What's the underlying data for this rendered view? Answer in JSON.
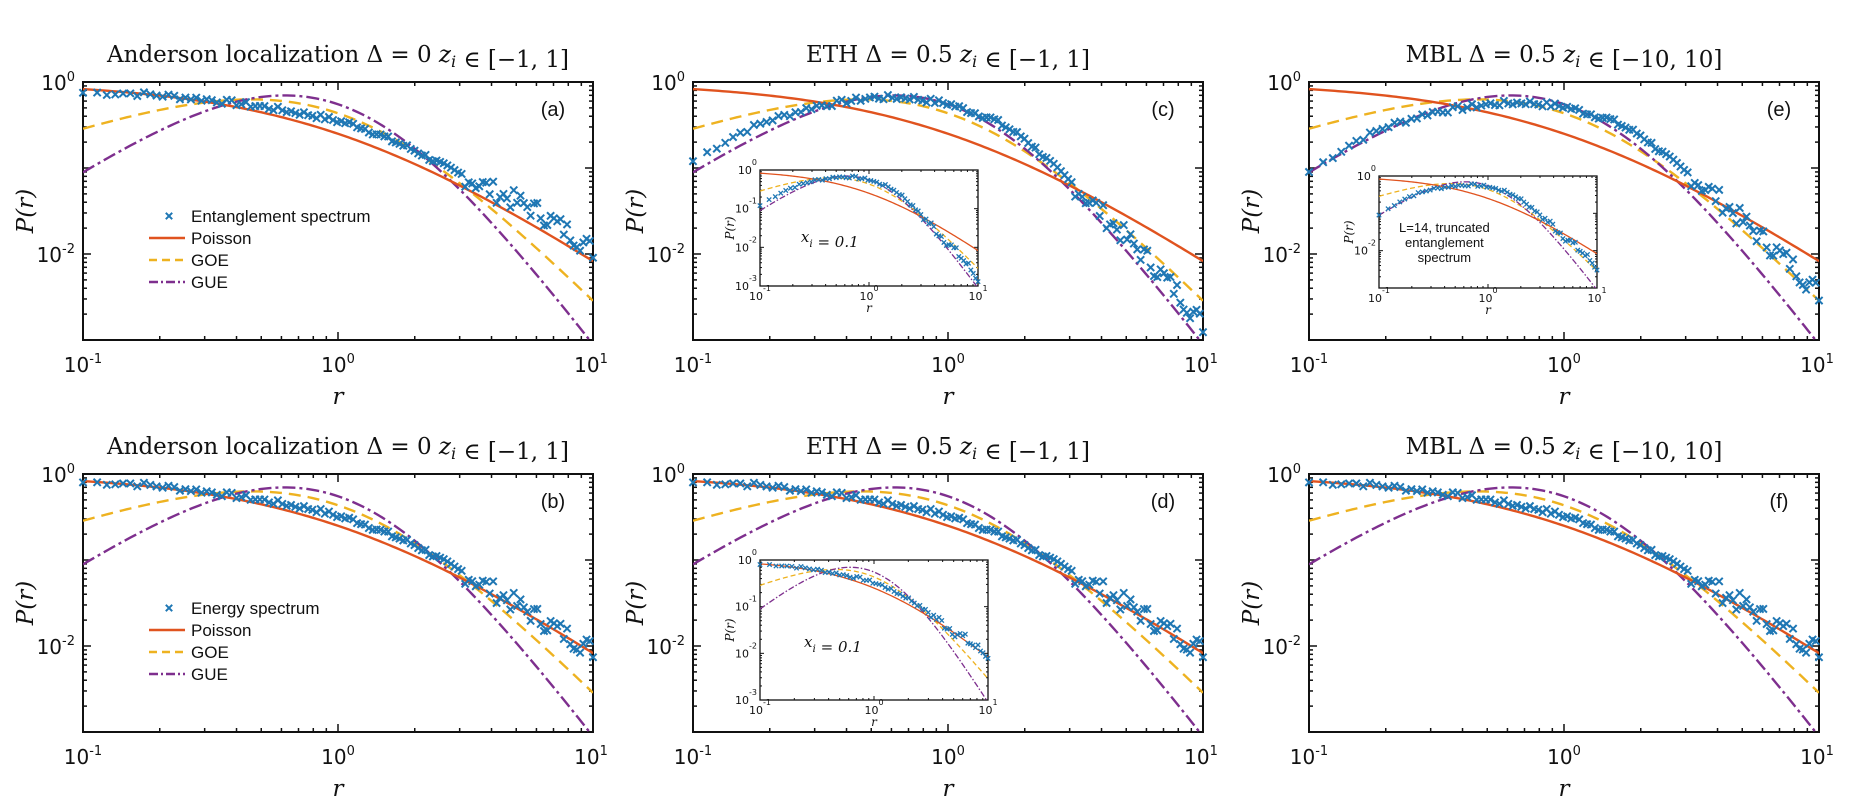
{
  "colors": {
    "data": "#1f77b4",
    "poisson": "#e0531f",
    "goe": "#eeb220",
    "gue": "#7e2f8e",
    "axis": "#111111"
  },
  "chart_data": [
    {
      "id": "a",
      "type": "line",
      "title": "Anderson localization Δ = 0 z_i ∈ [−1, 1]",
      "panel_label": "(a)",
      "xlabel": "r",
      "ylabel": "P(r)",
      "xscale": "log",
      "yscale": "log",
      "xlim": [
        0.1,
        10
      ],
      "ylim": [
        0.001,
        1
      ],
      "xticks": [
        "10-1",
        "100",
        "101"
      ],
      "yticks": [
        "10-2",
        "100"
      ],
      "legend": [
        "Entanglement spectrum",
        "Poisson",
        "GOE",
        "GUE"
      ],
      "legend_position": "left",
      "series": [
        {
          "name": "Entanglement spectrum",
          "kind": "scatter",
          "x": [
            0.1,
            0.15,
            0.2,
            0.3,
            0.5,
            0.8,
            1.2,
            2,
            3,
            4,
            6,
            8,
            10
          ],
          "y": [
            0.75,
            0.74,
            0.7,
            0.63,
            0.52,
            0.41,
            0.31,
            0.16,
            0.085,
            0.055,
            0.032,
            0.018,
            0.011
          ]
        },
        {
          "name": "Poisson",
          "kind": "line",
          "x": [
            0.1,
            10
          ],
          "formula": "poisson"
        },
        {
          "name": "GOE",
          "kind": "line",
          "x": [
            0.1,
            10
          ],
          "formula": "goe"
        },
        {
          "name": "GUE",
          "kind": "line",
          "x": [
            0.1,
            10
          ],
          "formula": "gue"
        }
      ]
    },
    {
      "id": "c",
      "type": "line",
      "title": "ETH Δ = 0.5 z_i ∈ [−1, 1]",
      "panel_label": "(c)",
      "xlabel": "r",
      "ylabel": "P(r)",
      "xscale": "log",
      "yscale": "log",
      "xlim": [
        0.1,
        10
      ],
      "ylim": [
        0.001,
        1
      ],
      "xticks": [
        "10-1",
        "100",
        "101"
      ],
      "yticks": [
        "10-2",
        "100"
      ],
      "series": [
        {
          "name": "Entanglement spectrum",
          "kind": "scatter",
          "x": [
            0.1,
            0.15,
            0.2,
            0.3,
            0.5,
            0.7,
            1,
            1.5,
            2,
            3,
            4,
            6,
            8,
            10
          ],
          "y": [
            0.12,
            0.25,
            0.36,
            0.52,
            0.66,
            0.66,
            0.56,
            0.37,
            0.22,
            0.07,
            0.03,
            0.009,
            0.0035,
            0.0015
          ]
        },
        {
          "name": "Poisson",
          "kind": "line",
          "x": [
            0.1,
            10
          ],
          "formula": "poisson"
        },
        {
          "name": "GOE",
          "kind": "line",
          "x": [
            0.1,
            10
          ],
          "formula": "goe"
        },
        {
          "name": "GUE",
          "kind": "line",
          "x": [
            0.1,
            10
          ],
          "formula": "gue"
        }
      ],
      "inset": {
        "note": "x_i = 0.1",
        "xticks": [
          "10-1",
          "100",
          "101"
        ],
        "yticks": [
          "10-3",
          "10-2",
          "10-1",
          "100"
        ],
        "xlabel": "r",
        "ylabel": "P(r)"
      }
    },
    {
      "id": "e",
      "type": "line",
      "title": "MBL Δ = 0.5 z_i ∈ [−10, 10]",
      "panel_label": "(e)",
      "xlabel": "r",
      "ylabel": "P(r)",
      "xscale": "log",
      "yscale": "log",
      "xlim": [
        0.1,
        10
      ],
      "ylim": [
        0.001,
        1
      ],
      "xticks": [
        "10-1",
        "100",
        "101"
      ],
      "yticks": [
        "10-2",
        "100"
      ],
      "series": [
        {
          "name": "Entanglement spectrum",
          "kind": "scatter",
          "x": [
            0.1,
            0.15,
            0.2,
            0.3,
            0.5,
            0.7,
            1,
            1.5,
            2,
            3,
            4,
            6,
            8,
            10
          ],
          "y": [
            0.09,
            0.2,
            0.3,
            0.44,
            0.55,
            0.58,
            0.52,
            0.37,
            0.24,
            0.09,
            0.045,
            0.015,
            0.007,
            0.0035
          ]
        },
        {
          "name": "Poisson",
          "kind": "line",
          "x": [
            0.1,
            10
          ],
          "formula": "poisson"
        },
        {
          "name": "GOE",
          "kind": "line",
          "x": [
            0.1,
            10
          ],
          "formula": "goe"
        },
        {
          "name": "GUE",
          "kind": "line",
          "x": [
            0.1,
            10
          ],
          "formula": "gue"
        }
      ],
      "inset": {
        "note_lines": [
          "L=14, truncated",
          "entanglement",
          "spectrum"
        ],
        "xticks": [
          "10-1",
          "100",
          "101"
        ],
        "yticks": [
          "10-2",
          "100"
        ],
        "xlabel": "r",
        "ylabel": "P(r)"
      }
    },
    {
      "id": "b",
      "type": "line",
      "title": "Anderson localization Δ = 0 z_i ∈ [−1, 1]",
      "panel_label": "(b)",
      "xlabel": "r",
      "ylabel": "P(r)",
      "xscale": "log",
      "yscale": "log",
      "xlim": [
        0.1,
        10
      ],
      "ylim": [
        0.001,
        1
      ],
      "xticks": [
        "10-1",
        "100",
        "101"
      ],
      "yticks": [
        "10-2",
        "100"
      ],
      "legend": [
        "Energy spectrum",
        "Poisson",
        "GOE",
        "GUE"
      ],
      "legend_position": "left",
      "series": [
        {
          "name": "Energy spectrum",
          "kind": "scatter",
          "x": [
            0.1,
            0.15,
            0.2,
            0.3,
            0.5,
            0.8,
            1.2,
            2,
            3,
            4,
            6,
            8,
            10
          ],
          "y": [
            0.8,
            0.78,
            0.72,
            0.63,
            0.5,
            0.39,
            0.28,
            0.15,
            0.075,
            0.045,
            0.022,
            0.013,
            0.009
          ]
        },
        {
          "name": "Poisson",
          "kind": "line",
          "x": [
            0.1,
            10
          ],
          "formula": "poisson"
        },
        {
          "name": "GOE",
          "kind": "line",
          "x": [
            0.1,
            10
          ],
          "formula": "goe"
        },
        {
          "name": "GUE",
          "kind": "line",
          "x": [
            0.1,
            10
          ],
          "formula": "gue"
        }
      ]
    },
    {
      "id": "d",
      "type": "line",
      "title": "ETH Δ = 0.5 z_i ∈ [−1, 1]",
      "panel_label": "(d)",
      "xlabel": "r",
      "ylabel": "P(r)",
      "xscale": "log",
      "yscale": "log",
      "xlim": [
        0.1,
        10
      ],
      "ylim": [
        0.001,
        1
      ],
      "xticks": [
        "10-1",
        "100",
        "101"
      ],
      "yticks": [
        "10-2",
        "100"
      ],
      "series": [
        {
          "name": "Energy spectrum",
          "kind": "scatter",
          "x": [
            0.1,
            0.15,
            0.2,
            0.3,
            0.5,
            0.8,
            1.2,
            2,
            3,
            4,
            6,
            8,
            10
          ],
          "y": [
            0.8,
            0.78,
            0.72,
            0.63,
            0.5,
            0.39,
            0.28,
            0.15,
            0.075,
            0.045,
            0.022,
            0.013,
            0.009
          ]
        },
        {
          "name": "Poisson",
          "kind": "line",
          "x": [
            0.1,
            10
          ],
          "formula": "poisson"
        },
        {
          "name": "GOE",
          "kind": "line",
          "x": [
            0.1,
            10
          ],
          "formula": "goe"
        },
        {
          "name": "GUE",
          "kind": "line",
          "x": [
            0.1,
            10
          ],
          "formula": "gue"
        }
      ],
      "inset": {
        "note": "x_i = 0.1",
        "xticks": [
          "10-1",
          "100",
          "101"
        ],
        "yticks": [
          "10-3",
          "10-2",
          "10-1",
          "100"
        ],
        "xlabel": "r",
        "ylabel": "P(r)"
      }
    },
    {
      "id": "f",
      "type": "line",
      "title": "MBL Δ = 0.5 z_i ∈ [−10, 10]",
      "panel_label": "(f)",
      "xlabel": "r",
      "ylabel": "P(r)",
      "xscale": "log",
      "yscale": "log",
      "xlim": [
        0.1,
        10
      ],
      "ylim": [
        0.001,
        1
      ],
      "xticks": [
        "10-1",
        "100",
        "101"
      ],
      "yticks": [
        "10-2",
        "100"
      ],
      "series": [
        {
          "name": "Energy spectrum",
          "kind": "scatter",
          "x": [
            0.1,
            0.15,
            0.2,
            0.3,
            0.5,
            0.8,
            1.2,
            2,
            3,
            4,
            6,
            8,
            10
          ],
          "y": [
            0.8,
            0.78,
            0.72,
            0.63,
            0.5,
            0.39,
            0.28,
            0.15,
            0.075,
            0.045,
            0.022,
            0.013,
            0.009
          ]
        },
        {
          "name": "Poisson",
          "kind": "line",
          "x": [
            0.1,
            10
          ],
          "formula": "poisson"
        },
        {
          "name": "GOE",
          "kind": "line",
          "x": [
            0.1,
            10
          ],
          "formula": "goe"
        },
        {
          "name": "GUE",
          "kind": "line",
          "x": [
            0.1,
            10
          ],
          "formula": "gue"
        }
      ]
    }
  ]
}
